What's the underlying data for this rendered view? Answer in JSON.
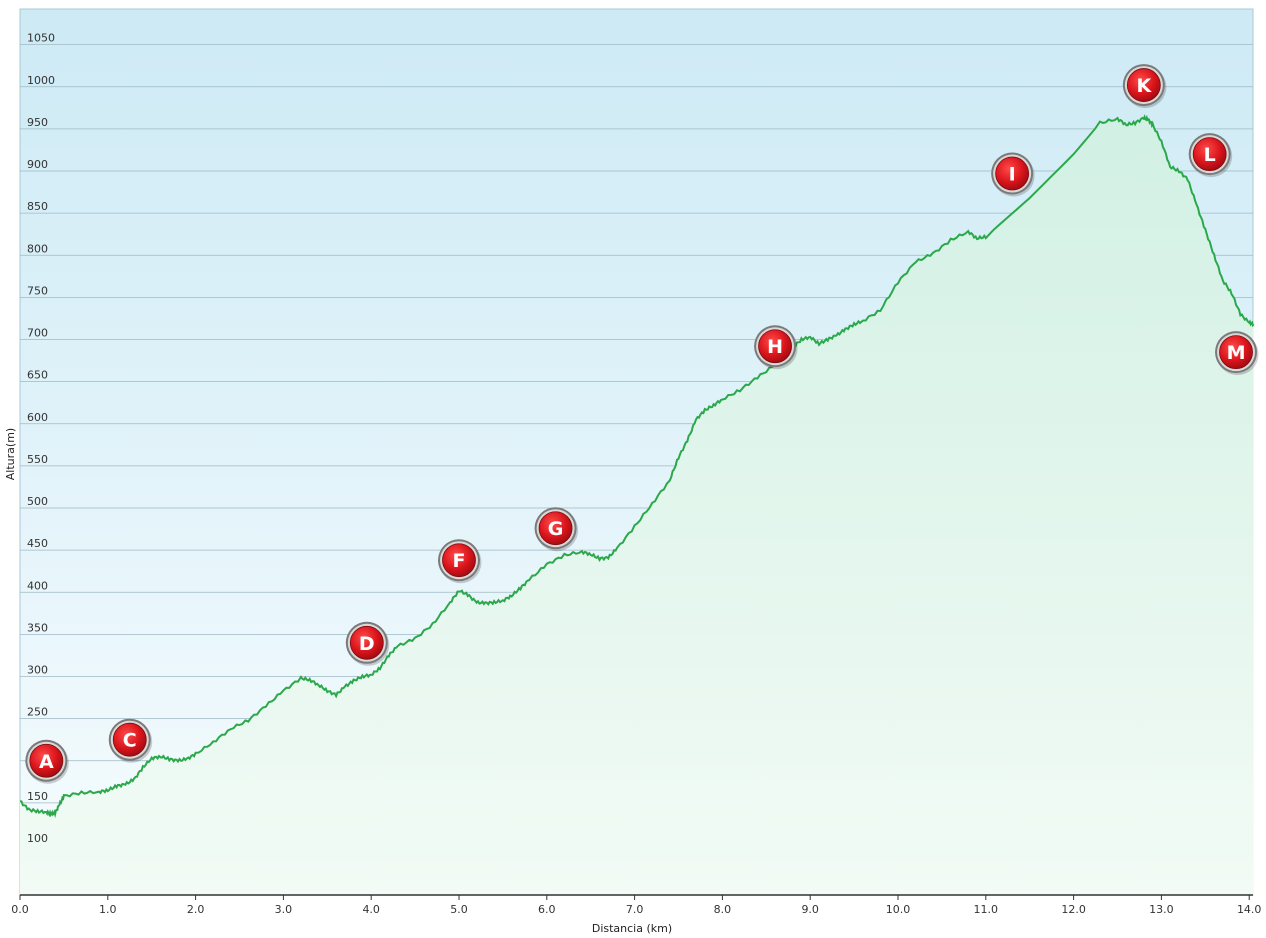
{
  "chart_data": {
    "type": "area",
    "xlabel": "Distancia  (km)",
    "ylabel": "Altura(m)",
    "xlim": [
      0,
      14.05
    ],
    "ylim": [
      60,
      1095
    ],
    "x_ticks": [
      "0.0",
      "1.0",
      "2.0",
      "3.0",
      "4.0",
      "5.0",
      "6.0",
      "7.0",
      "8.0",
      "9.0",
      "10.0",
      "11.0",
      "12.0",
      "13.0",
      "14.0"
    ],
    "y_ticks": [
      "100",
      "150",
      "250",
      "300",
      "350",
      "400",
      "450",
      "500",
      "550",
      "600",
      "650",
      "700",
      "750",
      "800",
      "850",
      "900",
      "950",
      "1000",
      "1050"
    ],
    "grid": true,
    "colors": {
      "line": "#2aa84a",
      "fill_top": "#cdeee0",
      "fill_bottom": "#eefaf2",
      "bg_top": "#cdeaf5",
      "bg_bottom": "#f3fbfd",
      "marker": "#d9141b"
    },
    "series": [
      {
        "x": [
          0,
          0.1,
          0.2,
          0.3,
          0.35,
          0.4,
          0.45,
          0.5,
          0.7,
          0.9,
          1.0,
          1.1,
          1.2,
          1.3,
          1.4,
          1.5,
          1.6,
          1.7,
          1.8,
          1.9,
          2.0,
          2.2,
          2.4,
          2.6,
          2.8,
          3.0,
          3.2,
          3.3,
          3.4,
          3.5,
          3.6,
          3.7,
          3.8,
          3.9,
          4.0,
          4.1,
          4.2,
          4.3,
          4.5,
          4.7,
          4.9,
          5.0,
          5.1,
          5.2,
          5.3,
          5.4,
          5.5,
          5.6,
          5.7,
          5.8,
          6.0,
          6.2,
          6.4,
          6.5,
          6.6,
          6.7,
          6.8,
          7.0,
          7.2,
          7.4,
          7.5,
          7.6,
          7.7,
          7.8,
          7.9,
          8.0,
          8.2,
          8.4,
          8.6,
          8.8,
          8.9,
          9.0,
          9.1,
          9.2,
          9.3,
          9.4,
          9.5,
          9.6,
          9.8,
          10.0,
          10.2,
          10.4,
          10.6,
          10.8,
          10.9,
          11.0,
          11.5,
          12.0,
          12.3,
          12.5,
          12.6,
          12.7,
          12.8,
          12.85,
          12.9,
          13.0,
          13.1,
          13.2,
          13.3,
          13.4,
          13.5,
          13.6,
          13.7,
          13.8,
          13.9,
          14.0,
          14.05
        ],
        "values": [
          152,
          142,
          140,
          139,
          137,
          138,
          148,
          158,
          162,
          163,
          165,
          170,
          172,
          178,
          192,
          203,
          205,
          202,
          200,
          202,
          208,
          222,
          238,
          248,
          265,
          283,
          298,
          296,
          290,
          283,
          278,
          288,
          295,
          300,
          302,
          310,
          325,
          336,
          345,
          362,
          388,
          402,
          397,
          388,
          387,
          388,
          390,
          396,
          405,
          415,
          433,
          444,
          448,
          445,
          440,
          441,
          452,
          478,
          505,
          533,
          560,
          580,
          605,
          616,
          622,
          629,
          640,
          655,
          670,
          690,
          700,
          703,
          695,
          700,
          705,
          712,
          718,
          722,
          735,
          768,
          792,
          802,
          818,
          828,
          820,
          822,
          868,
          920,
          957,
          962,
          955,
          957,
          963,
          961,
          955,
          935,
          905,
          900,
          890,
          860,
          830,
          800,
          770,
          755,
          730,
          720,
          718
        ]
      }
    ],
    "markers": [
      {
        "label": "A",
        "x": 0.3,
        "y": 200
      },
      {
        "label": "C",
        "x": 1.25,
        "y": 225
      },
      {
        "label": "D",
        "x": 3.95,
        "y": 340
      },
      {
        "label": "F",
        "x": 5.0,
        "y": 438
      },
      {
        "label": "G",
        "x": 6.1,
        "y": 476
      },
      {
        "label": "H",
        "x": 8.6,
        "y": 692
      },
      {
        "label": "I",
        "x": 11.3,
        "y": 897
      },
      {
        "label": "K",
        "x": 12.8,
        "y": 1002
      },
      {
        "label": "L",
        "x": 13.55,
        "y": 920
      },
      {
        "label": "M",
        "x": 13.85,
        "y": 685
      }
    ]
  }
}
